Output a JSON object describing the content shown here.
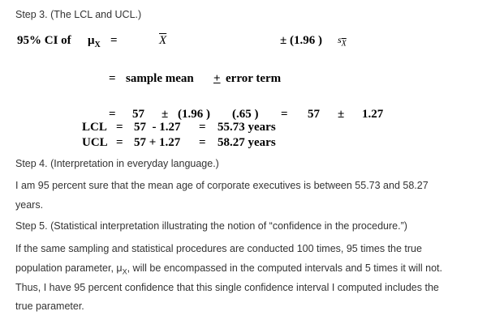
{
  "step3": {
    "heading": "Step 3. (The LCL and UCL.)",
    "line1": {
      "lhs": "95% CI of",
      "mu": "μ",
      "mu_sub": "X",
      "eq": "=",
      "xbar": "X",
      "pm": "± (1.96 )",
      "s": "s",
      "s_sub": "X"
    },
    "line2": {
      "eq": "=",
      "a": "sample mean",
      "pm": "+",
      "b": "error term"
    },
    "line3": {
      "eq": "=",
      "mean": "57",
      "pm": "±",
      "z": "(1.96 )",
      "se": "(.65 )",
      "eq2": "=",
      "mean2": "57",
      "pm2": "±",
      "err": "1.27"
    },
    "lcl": {
      "label": "LCL",
      "eq": "=",
      "expr": "57  - 1.27",
      "eq2": "=",
      "result": "55.73 years"
    },
    "ucl": {
      "label": "UCL",
      "eq": "=",
      "expr": "57 + 1.27",
      "eq2": "=",
      "result": "58.27 years"
    }
  },
  "step4": {
    "heading": "Step 4. (Interpretation in everyday language.)",
    "lines": [
      "I am 95 percent sure that the mean age of corporate executives is between 55.73 and 58.27",
      "years."
    ]
  },
  "step5": {
    "heading": "Step 5. (Statistical interpretation illustrating the notion of “confidence in the procedure.”)",
    "line1": "If the same sampling and statistical procedures are conducted 100 times, 95 times the true",
    "line2_a": "population parameter, μ",
    "line2_sub": "X",
    "line2_b": ", will be encompassed in the computed intervals and 5 times it will not.",
    "line3": "Thus, I have 95 percent confidence that this single confidence interval I computed includes the",
    "line4": "true parameter."
  }
}
